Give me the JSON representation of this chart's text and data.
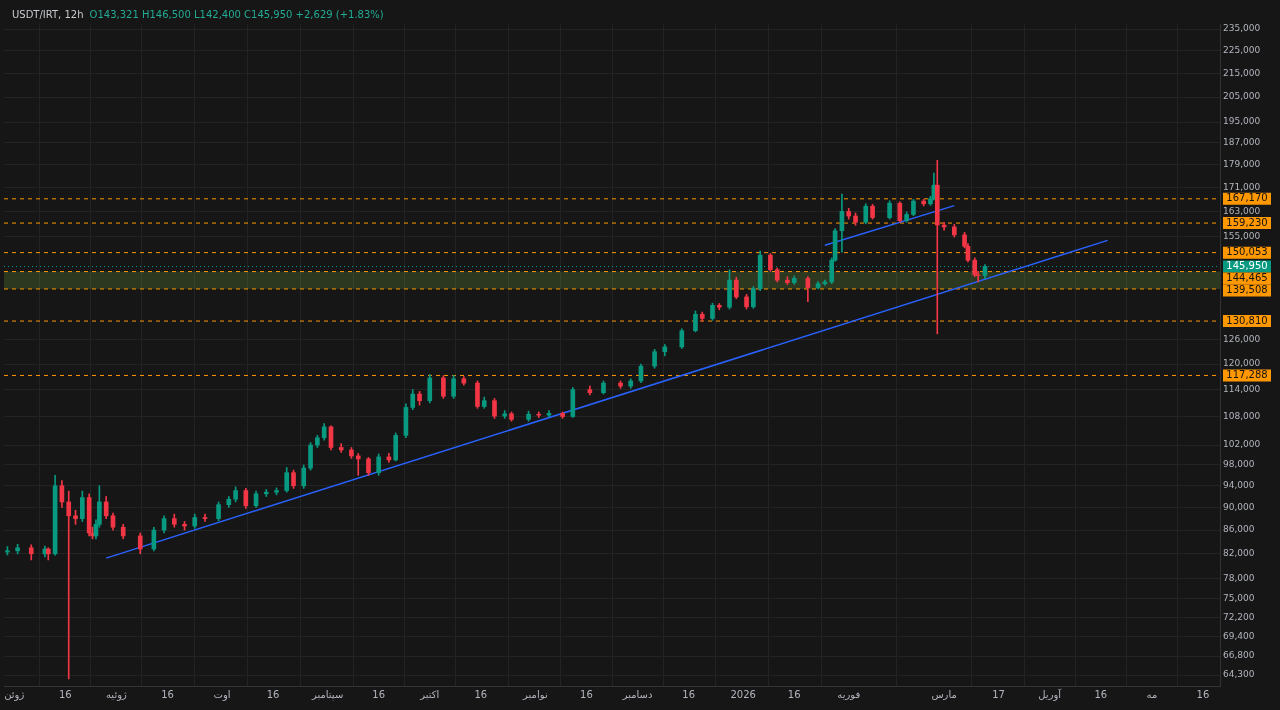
{
  "chart_data": {
    "type": "candlestick",
    "title": "USDT/IRT, 12h",
    "subtitle": "O143,321 H146,500 L142,400 C145,950 +2,629 (+1.83%)",
    "x": [
      "2025-05-30",
      "2025-06-02",
      "2025-06-06",
      "2025-06-10",
      "2025-06-11",
      "2025-06-13",
      "2025-06-15",
      "2025-06-17",
      "2025-06-19",
      "2025-06-21",
      "2025-06-23",
      "2025-06-24",
      "2025-06-25",
      "2025-06-26",
      "2025-06-28",
      "2025-06-30",
      "2025-07-03",
      "2025-07-08",
      "2025-07-12",
      "2025-07-15",
      "2025-07-18",
      "2025-07-21",
      "2025-07-24",
      "2025-07-27",
      "2025-07-31",
      "2025-08-03",
      "2025-08-05",
      "2025-08-08",
      "2025-08-11",
      "2025-08-14",
      "2025-08-17",
      "2025-08-20",
      "2025-08-22",
      "2025-08-25",
      "2025-08-27",
      "2025-08-29",
      "2025-08-31",
      "2025-09-02",
      "2025-09-05",
      "2025-09-08",
      "2025-09-10",
      "2025-09-13",
      "2025-09-16",
      "2025-09-19",
      "2025-09-21",
      "2025-09-24",
      "2025-09-26",
      "2025-09-28",
      "2025-10-01",
      "2025-10-05",
      "2025-10-08",
      "2025-10-11",
      "2025-10-15",
      "2025-10-17",
      "2025-10-20",
      "2025-10-23",
      "2025-10-25",
      "2025-10-30",
      "2025-11-02",
      "2025-11-05",
      "2025-11-09",
      "2025-11-12",
      "2025-11-17",
      "2025-11-21",
      "2025-11-26",
      "2025-11-29",
      "2025-12-02",
      "2025-12-06",
      "2025-12-09",
      "2025-12-14",
      "2025-12-18",
      "2025-12-20",
      "2025-12-23",
      "2025-12-25",
      "2025-12-28",
      "2025-12-30",
      "2026-01-02",
      "2026-01-04",
      "2026-01-06",
      "2026-01-09",
      "2026-01-11",
      "2026-01-14",
      "2026-01-16",
      "2026-01-20",
      "2026-01-23",
      "2026-01-25",
      "2026-01-27",
      "2026-01-28",
      "2026-01-30",
      "2026-02-01",
      "2026-02-03",
      "2026-02-06",
      "2026-02-08",
      "2026-02-13",
      "2026-02-16",
      "2026-02-18",
      "2026-02-20",
      "2026-02-23",
      "2026-02-25",
      "2026-02-26",
      "2026-02-27",
      "2026-03-01",
      "2026-03-04",
      "2026-03-07",
      "2026-03-08",
      "2026-03-10",
      "2026-03-11",
      "2026-03-13"
    ],
    "ohlc": [
      [
        82300,
        83200,
        81800,
        82500
      ],
      [
        82500,
        83600,
        82000,
        83000
      ],
      [
        83000,
        83500,
        81000,
        82000
      ],
      [
        82000,
        83300,
        81500,
        82800
      ],
      [
        82800,
        83000,
        81000,
        82000
      ],
      [
        82000,
        96000,
        81800,
        94000
      ],
      [
        94000,
        95000,
        90000,
        91000
      ],
      [
        91000,
        93000,
        63800,
        88500
      ],
      [
        88500,
        89500,
        87000,
        88000
      ],
      [
        88000,
        93000,
        87500,
        91800
      ],
      [
        91800,
        92500,
        85000,
        85500
      ],
      [
        85500,
        86500,
        84500,
        85000
      ],
      [
        85000,
        87800,
        84500,
        87000
      ],
      [
        87000,
        94000,
        86500,
        91000
      ],
      [
        91000,
        92000,
        88000,
        88500
      ],
      [
        88500,
        89000,
        86000,
        86500
      ],
      [
        86500,
        87000,
        84500,
        85000
      ],
      [
        85000,
        85500,
        82000,
        82800
      ],
      [
        82800,
        86500,
        82500,
        86000
      ],
      [
        86000,
        88500,
        85500,
        88000
      ],
      [
        88000,
        88800,
        86500,
        87000
      ],
      [
        87000,
        87500,
        86000,
        86700
      ],
      [
        86700,
        88800,
        86300,
        88200
      ],
      [
        88200,
        88800,
        87500,
        88000
      ],
      [
        88000,
        91000,
        87600,
        90500
      ],
      [
        90500,
        92000,
        90000,
        91500
      ],
      [
        91500,
        93800,
        91000,
        93100
      ],
      [
        93100,
        93500,
        89800,
        90300
      ],
      [
        90300,
        93000,
        90000,
        92500
      ],
      [
        92500,
        93300,
        92000,
        92800
      ],
      [
        92800,
        93600,
        92300,
        93100
      ],
      [
        93100,
        97500,
        92800,
        96500
      ],
      [
        96500,
        97000,
        93500,
        94000
      ],
      [
        94000,
        98000,
        93500,
        97400
      ],
      [
        97400,
        102500,
        97000,
        102000
      ],
      [
        102000,
        104000,
        101500,
        103500
      ],
      [
        103500,
        106500,
        103000,
        105800
      ],
      [
        105800,
        106000,
        101000,
        101500
      ],
      [
        101500,
        102300,
        100500,
        101000
      ],
      [
        101000,
        101500,
        99300,
        99800
      ],
      [
        99800,
        100300,
        96000,
        99200
      ],
      [
        99200,
        99500,
        96000,
        96500
      ],
      [
        96500,
        100200,
        96000,
        99600
      ],
      [
        99600,
        100300,
        98500,
        99000
      ],
      [
        99000,
        104500,
        98800,
        104000
      ],
      [
        104000,
        110800,
        103500,
        110000
      ],
      [
        110000,
        114000,
        109500,
        113000
      ],
      [
        113000,
        113600,
        110500,
        111500
      ],
      [
        111500,
        117500,
        111000,
        116700
      ],
      [
        116700,
        117200,
        112000,
        112500
      ],
      [
        112500,
        117300,
        112000,
        116500
      ],
      [
        116500,
        117000,
        115000,
        115500
      ],
      [
        115500,
        116000,
        109800,
        110200
      ],
      [
        110200,
        112300,
        109800,
        111500
      ],
      [
        111500,
        112000,
        107600,
        108100
      ],
      [
        108100,
        109300,
        107600,
        108600
      ],
      [
        108600,
        109000,
        107000,
        107400
      ],
      [
        107400,
        109200,
        107000,
        108500
      ],
      [
        108500,
        109000,
        107800,
        108300
      ],
      [
        108300,
        109300,
        108000,
        108700
      ],
      [
        108700,
        109000,
        107600,
        108000
      ],
      [
        108000,
        114500,
        107800,
        114000
      ],
      [
        114000,
        114800,
        112800,
        113300
      ],
      [
        113300,
        116000,
        113000,
        115500
      ],
      [
        115500,
        116000,
        114300,
        114800
      ],
      [
        114800,
        116500,
        114300,
        116000
      ],
      [
        116000,
        120000,
        115600,
        119500
      ],
      [
        119500,
        123600,
        119000,
        123000
      ],
      [
        123000,
        124800,
        122000,
        124200
      ],
      [
        124200,
        128800,
        123800,
        128300
      ],
      [
        128300,
        133500,
        128000,
        132600
      ],
      [
        132600,
        133200,
        130800,
        131500
      ],
      [
        131500,
        135600,
        131000,
        135000
      ],
      [
        135000,
        135500,
        133800,
        134500
      ],
      [
        134500,
        145000,
        134000,
        142000
      ],
      [
        142000,
        142800,
        136800,
        137300
      ],
      [
        137300,
        138000,
        134000,
        134600
      ],
      [
        134600,
        140200,
        134200,
        139600
      ],
      [
        139600,
        150500,
        139000,
        149300
      ],
      [
        149300,
        149800,
        144500,
        145000
      ],
      [
        145000,
        145500,
        141500,
        142000
      ],
      [
        142000,
        143000,
        140800,
        141300
      ],
      [
        141300,
        143200,
        140800,
        142500
      ],
      [
        142500,
        143000,
        136000,
        139900
      ],
      [
        139900,
        141600,
        139500,
        141000
      ],
      [
        141000,
        142000,
        140600,
        141500
      ],
      [
        141500,
        148500,
        141000,
        147800
      ],
      [
        147800,
        157500,
        147500,
        156800
      ],
      [
        156800,
        168800,
        150200,
        163000
      ],
      [
        163000,
        164000,
        160500,
        161500
      ],
      [
        161500,
        162500,
        158500,
        159500
      ],
      [
        159500,
        165500,
        159000,
        164700
      ],
      [
        164700,
        165300,
        160500,
        161000
      ],
      [
        161000,
        166500,
        160500,
        165700
      ],
      [
        165700,
        166200,
        159500,
        160000
      ],
      [
        160000,
        162800,
        159500,
        162000
      ],
      [
        162000,
        167000,
        161600,
        166400
      ],
      [
        166400,
        167000,
        164800,
        165500
      ],
      [
        165500,
        168000,
        165000,
        167200
      ],
      [
        167200,
        176000,
        166800,
        171800
      ],
      [
        171800,
        180600,
        127500,
        158600
      ],
      [
        158600,
        159500,
        157000,
        158000
      ],
      [
        158000,
        158800,
        154800,
        155500
      ],
      [
        155500,
        156300,
        151500,
        152000
      ],
      [
        152000,
        152800,
        147300,
        147800
      ],
      [
        147800,
        148500,
        143000,
        143500
      ],
      [
        143500,
        144500,
        141500,
        143321
      ],
      [
        143321,
        146500,
        142400,
        145950
      ]
    ],
    "colors": [
      "#089981",
      "#089981",
      "#f23645",
      "#089981",
      "#f23645",
      "#089981",
      "#f23645",
      "#f23645",
      "#f23645",
      "#089981",
      "#f23645",
      "#f23645",
      "#089981",
      "#089981",
      "#f23645",
      "#f23645",
      "#f23645",
      "#f23645",
      "#089981",
      "#089981",
      "#f23645",
      "#f23645",
      "#089981",
      "#f23645",
      "#089981",
      "#089981",
      "#089981",
      "#f23645",
      "#089981",
      "#089981",
      "#089981",
      "#089981",
      "#f23645",
      "#089981",
      "#089981",
      "#089981",
      "#089981",
      "#f23645",
      "#f23645",
      "#f23645",
      "#f23645",
      "#f23645",
      "#089981",
      "#f23645",
      "#089981",
      "#089981",
      "#089981",
      "#f23645",
      "#089981",
      "#f23645",
      "#089981",
      "#f23645",
      "#f23645",
      "#089981",
      "#f23645",
      "#089981",
      "#f23645",
      "#089981",
      "#f23645",
      "#089981",
      "#f23645",
      "#089981",
      "#f23645",
      "#089981",
      "#f23645",
      "#089981",
      "#089981",
      "#089981",
      "#089981",
      "#089981",
      "#089981",
      "#f23645",
      "#089981",
      "#f23645",
      "#089981",
      "#f23645",
      "#f23645",
      "#089981",
      "#089981",
      "#f23645",
      "#f23645",
      "#f23645",
      "#089981",
      "#f23645",
      "#089981",
      "#089981",
      "#089981",
      "#089981",
      "#089981",
      "#f23645",
      "#f23645",
      "#089981",
      "#f23645",
      "#089981",
      "#f23645",
      "#089981",
      "#089981",
      "#f23645",
      "#089981",
      "#089981",
      "#f23645",
      "#f23645",
      "#f23645",
      "#f23645",
      "#f23645",
      "#f23645",
      "#f23645",
      "#089981"
    ],
    "series": [
      {
        "type": "line",
        "color": "#2962ff",
        "x": [
          "2025-06-28",
          "2026-04-18"
        ],
        "values": [
          81300,
          153800
        ]
      },
      {
        "type": "line",
        "color": "#2962ff",
        "x": [
          "2026-01-25",
          "2026-03-04"
        ],
        "values": [
          152300,
          164900
        ]
      }
    ],
    "xlim": [
      "2025-05-29",
      "2026-05-21"
    ],
    "xticks": [
      {
        "value": "2025-06-01",
        "label": "ژوئن"
      },
      {
        "value": "2025-06-16",
        "label": "16"
      },
      {
        "value": "2025-07-01",
        "label": "ژوئیه"
      },
      {
        "value": "2025-07-16",
        "label": "16"
      },
      {
        "value": "2025-08-01",
        "label": "اوت"
      },
      {
        "value": "2025-08-16",
        "label": "16"
      },
      {
        "value": "2025-09-01",
        "label": "سپتامبر"
      },
      {
        "value": "2025-09-16",
        "label": "16"
      },
      {
        "value": "2025-10-01",
        "label": "اکتبر"
      },
      {
        "value": "2025-10-16",
        "label": "16"
      },
      {
        "value": "2025-11-01",
        "label": "نوامبر"
      },
      {
        "value": "2025-11-16",
        "label": "16"
      },
      {
        "value": "2025-12-01",
        "label": "دسامبر"
      },
      {
        "value": "2025-12-16",
        "label": "16"
      },
      {
        "value": "2026-01-01",
        "label": "2026"
      },
      {
        "value": "2026-01-16",
        "label": "16"
      },
      {
        "value": "2026-02-01",
        "label": "فوریه"
      },
      {
        "value": "2026-03-01",
        "label": "مارس"
      },
      {
        "value": "2026-03-17",
        "label": "17"
      },
      {
        "value": "2026-04-01",
        "label": "آوریل"
      },
      {
        "value": "2026-04-16",
        "label": "16"
      },
      {
        "value": "2026-05-01",
        "label": "مه"
      },
      {
        "value": "2026-05-16",
        "label": "16"
      }
    ],
    "ylim": [
      62900,
      237400
    ],
    "yticks": [
      {
        "value": 64300,
        "label": "64,300"
      },
      {
        "value": 66800,
        "label": "66,800"
      },
      {
        "value": 69400,
        "label": "69,400"
      },
      {
        "value": 72200,
        "label": "72,200"
      },
      {
        "value": 75000,
        "label": "75,000"
      },
      {
        "value": 78000,
        "label": "78,000"
      },
      {
        "value": 82000,
        "label": "82,000"
      },
      {
        "value": 86000,
        "label": "86,000"
      },
      {
        "value": 90000,
        "label": "90,000"
      },
      {
        "value": 94000,
        "label": "94,000"
      },
      {
        "value": 98000,
        "label": "98,000"
      },
      {
        "value": 102000,
        "label": "102,000"
      },
      {
        "value": 108000,
        "label": "108,000"
      },
      {
        "value": 114000,
        "label": "114,000"
      },
      {
        "value": 120000,
        "label": "120,000"
      },
      {
        "value": 126000,
        "label": "126,000"
      },
      {
        "value": 155000,
        "label": "155,000"
      },
      {
        "value": 163000,
        "label": "163,000"
      },
      {
        "value": 171000,
        "label": "171,000"
      },
      {
        "value": 179000,
        "label": "179,000"
      },
      {
        "value": 187000,
        "label": "187,000"
      },
      {
        "value": 195000,
        "label": "195,000"
      },
      {
        "value": 205000,
        "label": "205,000"
      },
      {
        "value": 215000,
        "label": "215,000"
      },
      {
        "value": 225000,
        "label": "225,000"
      },
      {
        "value": 235000,
        "label": "235,000"
      }
    ],
    "log": "y",
    "grid": true,
    "legend": false,
    "ref_lines": [
      {
        "axis": "y",
        "value": 167170,
        "label": "167,170",
        "color": "#ff9800",
        "line_style": "dashed"
      },
      {
        "axis": "y",
        "value": 159230,
        "label": "159,230",
        "color": "#ff9800",
        "line_style": "dashed"
      },
      {
        "axis": "y",
        "value": 150053,
        "label": "150,053",
        "color": "#ff9800",
        "line_style": "dashed"
      },
      {
        "axis": "y",
        "value": 145950,
        "label": "145,950",
        "color": "#089981",
        "line_style": "dotted"
      },
      {
        "axis": "y",
        "value": 144465,
        "label": "144,465",
        "color": "#ff9800",
        "line_style": "dashed"
      },
      {
        "axis": "y",
        "value": 139508,
        "label": "139,508",
        "color": "#ff9800",
        "line_style": "dashed"
      },
      {
        "axis": "y",
        "value": 130810,
        "label": "130,810",
        "color": "#ff9800",
        "line_style": "dashed"
      },
      {
        "axis": "y",
        "value": 117288,
        "label": "117,288",
        "color": "#ff9800",
        "line_style": "dashed"
      }
    ],
    "bands": [
      {
        "axis": "y",
        "from": 139508,
        "to": 144465,
        "color": "#8bc34a"
      }
    ]
  }
}
